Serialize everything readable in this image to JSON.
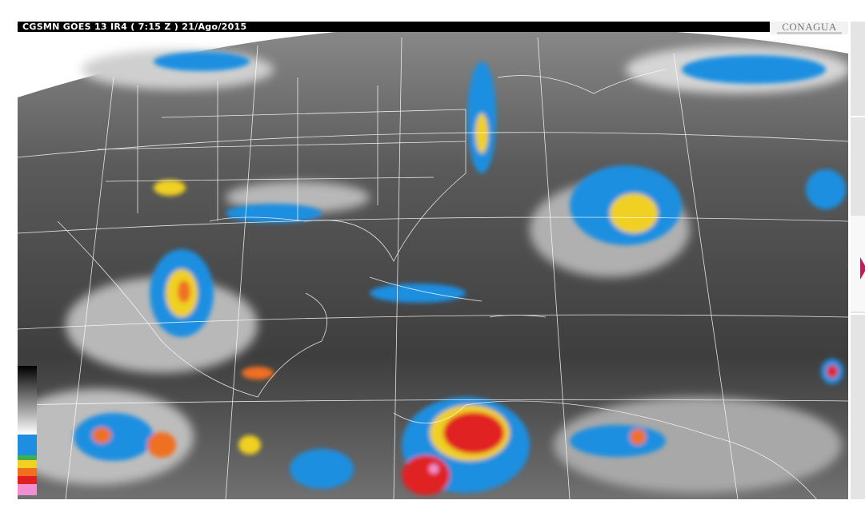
{
  "header": {
    "title": "CGSMN GOES 13 IR4 ( 7:15 Z ) 21/Ago/2015",
    "logo_text": "CONAGUA"
  },
  "image": {
    "type": "infrared satellite image",
    "colors": {
      "cloud_blue": "#1e8fe0",
      "cloud_green": "#3cb04a",
      "cloud_yellow": "#f0d020",
      "cloud_orange": "#f07020",
      "cloud_red": "#e02020",
      "cloud_pink": "#f090d0",
      "boundaries": "#ffffff"
    }
  },
  "legend": {
    "colors": [
      "#000000",
      "#444444",
      "#888888",
      "#cccccc",
      "#ffffff",
      "#1e8fe0",
      "#3cb04a",
      "#f0d020",
      "#f07020",
      "#e02020",
      "#f090d0"
    ]
  },
  "side_panel": {
    "arrow_color": "#d0145a"
  }
}
